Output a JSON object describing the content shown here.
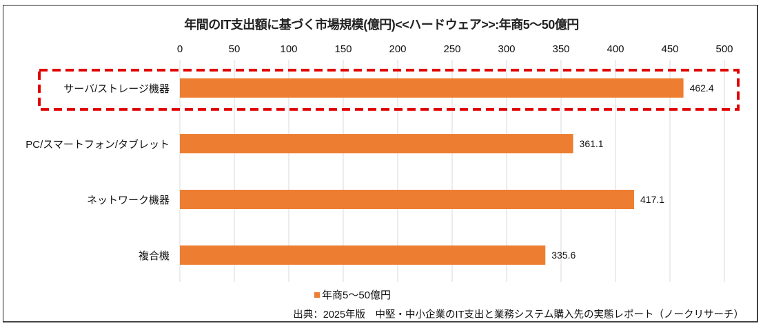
{
  "chart_data": {
    "type": "bar",
    "orientation": "horizontal",
    "title": "年間のIT支出額に基づく市場規模(億円)<<ハードウェア>>:年商5〜50億円",
    "categories": [
      "サーバ/ストレージ機器",
      "PC/スマートフォン/タブレット",
      "ネットワーク機器",
      "複合機"
    ],
    "series": [
      {
        "name": "年商5〜50億円",
        "values": [
          462.4,
          361.1,
          417.1,
          335.6
        ],
        "color": "#ED7D31"
      }
    ],
    "value_labels": [
      "462.4",
      "361.1",
      "417.1",
      "335.6"
    ],
    "xlim": [
      0,
      500
    ],
    "xticks": [
      "0",
      "50",
      "100",
      "150",
      "200",
      "250",
      "300",
      "350",
      "400",
      "450",
      "500"
    ],
    "xtick_values": [
      0,
      50,
      100,
      150,
      200,
      250,
      300,
      350,
      400,
      450,
      500
    ],
    "grid": true,
    "legend": "bottom",
    "highlighted_category": "サーバ/ストレージ機器",
    "highlight_color": "#E00000",
    "source": "出典：2025年版　中堅・中小企業のIT支出と業務システム購入先の実態レポート（ノークリサーチ）"
  }
}
